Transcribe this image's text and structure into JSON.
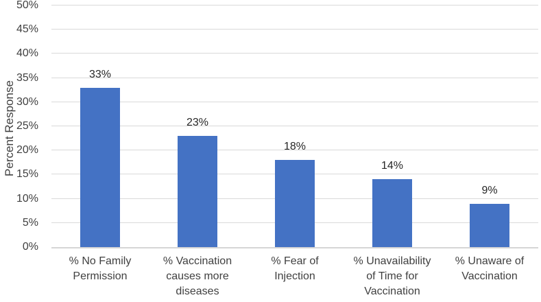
{
  "chart_data": {
    "type": "bar",
    "title": "",
    "xlabel": "",
    "ylabel": "Percent Response",
    "categories": [
      "% No Family\nPermission",
      "% Vaccination\ncauses more\ndiseases",
      "% Fear of\nInjection",
      "% Unavailability\nof Time for\nVaccination",
      "% Unaware of\nVaccination"
    ],
    "values": [
      33,
      23,
      18,
      14,
      9
    ],
    "value_labels": [
      "33%",
      "23%",
      "18%",
      "14%",
      "9%"
    ],
    "ylim": [
      0,
      50
    ],
    "ytick_step": 5,
    "ytick_labels": [
      "0%",
      "5%",
      "10%",
      "15%",
      "20%",
      "25%",
      "30%",
      "35%",
      "40%",
      "45%",
      "50%"
    ],
    "grid": "horizontal",
    "legend": "none",
    "bar_color": "#4472c4",
    "gridline_color": "#d9d9d9",
    "axis_line_color": "#d6d6d6",
    "text_color": "#404040"
  }
}
